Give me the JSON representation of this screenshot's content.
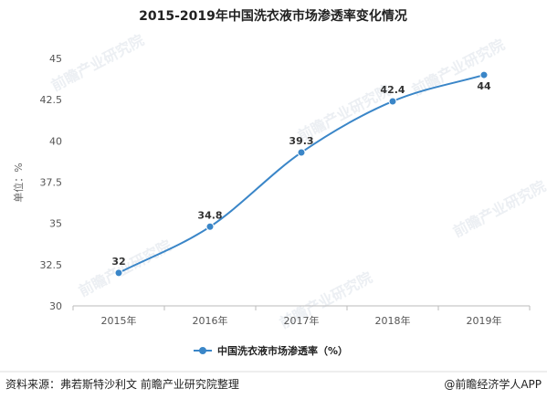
{
  "chart_data": {
    "type": "line",
    "title": "2015-2019年中国洗衣液市场渗透率变化情况",
    "ylabel": "单位：%",
    "xlabel": "",
    "categories": [
      "2015年",
      "2016年",
      "2017年",
      "2018年",
      "2019年"
    ],
    "series": [
      {
        "name": "中国洗衣液市场渗透率（%）",
        "values": [
          32,
          34.8,
          39.3,
          42.4,
          44
        ]
      }
    ],
    "data_labels": [
      "32",
      "34.8",
      "39.3",
      "42.4",
      "44"
    ],
    "ylim": [
      30,
      45
    ],
    "yticks": [
      "30",
      "32.5",
      "35",
      "37.5",
      "40",
      "42.5",
      "45"
    ],
    "ytick_values": [
      30,
      32.5,
      35,
      37.5,
      40,
      42.5,
      45
    ],
    "grid": false,
    "legend_position": "bottom",
    "colors": {
      "series": "#3a86c8",
      "axis": "#bbbbbb"
    }
  },
  "footer": {
    "source": "资料来源：弗若斯特沙利文 前瞻产业研究院整理",
    "brand": "@前瞻经济学人APP"
  },
  "watermark": {
    "text": "前瞻产业研究院"
  }
}
